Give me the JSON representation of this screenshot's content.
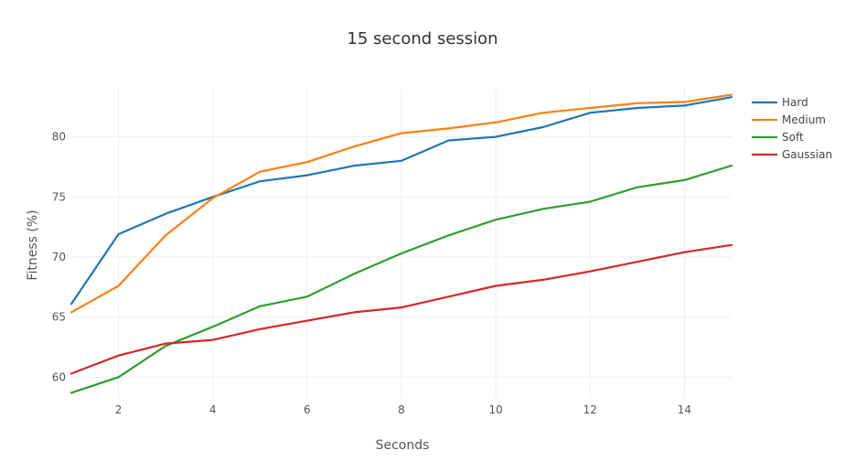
{
  "chart_data": {
    "type": "line",
    "title": "15 second session",
    "xlabel": "Seconds",
    "ylabel": "Fitness (%)",
    "xlim": [
      1,
      15
    ],
    "ylim": [
      58.2,
      84.0
    ],
    "x_ticks": [
      2,
      4,
      6,
      8,
      10,
      12,
      14
    ],
    "y_ticks": [
      60,
      65,
      70,
      75,
      80
    ],
    "grid": true,
    "legend_position": "top-right",
    "x": [
      1,
      2,
      3,
      4,
      5,
      6,
      7,
      8,
      9,
      10,
      11,
      12,
      13,
      14,
      15
    ],
    "series": [
      {
        "name": "Hard",
        "color": "#1f77b4",
        "values": [
          66.1,
          71.9,
          73.6,
          75.0,
          76.3,
          76.8,
          77.6,
          78.0,
          79.7,
          80.0,
          80.8,
          82.0,
          82.4,
          82.6,
          83.3
        ]
      },
      {
        "name": "Medium",
        "color": "#ff7f0e",
        "values": [
          65.4,
          67.6,
          71.8,
          74.9,
          77.1,
          77.9,
          79.2,
          80.3,
          80.7,
          81.2,
          82.0,
          82.4,
          82.8,
          82.9,
          83.5
        ]
      },
      {
        "name": "Soft",
        "color": "#2ca02c",
        "values": [
          58.7,
          60.0,
          62.6,
          64.2,
          65.9,
          66.7,
          68.6,
          70.3,
          71.8,
          73.1,
          74.0,
          74.6,
          75.8,
          76.4,
          77.6
        ]
      },
      {
        "name": "Gaussian",
        "color": "#d62728",
        "values": [
          60.3,
          61.8,
          62.8,
          63.1,
          64.0,
          64.7,
          65.4,
          65.8,
          66.7,
          67.6,
          68.1,
          68.8,
          69.6,
          70.4,
          71.0
        ]
      }
    ]
  }
}
